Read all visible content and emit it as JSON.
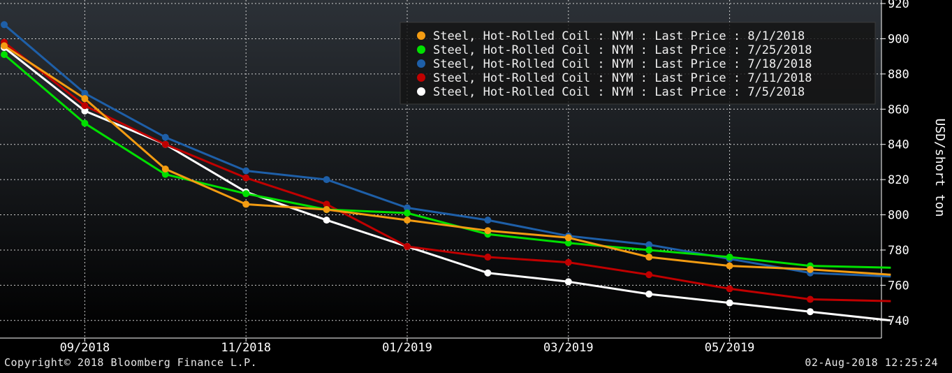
{
  "chart_data": {
    "type": "line",
    "title": "",
    "xlabel": "",
    "ylabel": "USD/short ton",
    "ylim": [
      730,
      922
    ],
    "yticks": [
      740,
      760,
      780,
      800,
      820,
      840,
      860,
      880,
      900,
      920
    ],
    "x_tick_labels": [
      "09/2018",
      "11/2018",
      "01/2019",
      "03/2019",
      "05/2019"
    ],
    "x_tick_index": [
      1,
      3,
      5,
      7,
      9
    ],
    "x": [
      "Aug 2018",
      "Sep 2018",
      "Oct 2018",
      "Nov 2018",
      "Dec 2018",
      "Jan 2019",
      "Feb 2019",
      "Mar 2019",
      "Apr 2019",
      "May 2019",
      "Jun 2019",
      "Jul 2019"
    ],
    "legend_position": "top-right",
    "series": [
      {
        "name": "Steel, Hot-Rolled Coil : NYM : Last Price : 8/1/2018",
        "color": "#f39c12",
        "values": [
          896,
          866,
          826,
          806,
          803,
          797,
          791,
          787,
          776,
          771,
          769,
          766
        ]
      },
      {
        "name": "Steel, Hot-Rolled Coil : NYM : Last Price : 7/25/2018",
        "color": "#00e000",
        "values": [
          891,
          852,
          823,
          812,
          803,
          801,
          789,
          784,
          780,
          776,
          771,
          770
        ]
      },
      {
        "name": "Steel, Hot-Rolled Coil : NYM : Last Price : 7/18/2018",
        "color": "#1e5fa8",
        "values": [
          908,
          869,
          844,
          825,
          820,
          804,
          797,
          788,
          783,
          775,
          767,
          765
        ]
      },
      {
        "name": "Steel, Hot-Rolled Coil : NYM : Last Price : 7/11/2018",
        "color": "#c00000",
        "values": [
          898,
          862,
          840,
          821,
          806,
          782,
          776,
          773,
          766,
          758,
          752,
          751
        ]
      },
      {
        "name": "Steel, Hot-Rolled Coil : NYM : Last Price : 7/5/2018",
        "color": "#ffffff",
        "values": [
          895,
          859,
          840,
          813,
          797,
          782,
          767,
          762,
          755,
          750,
          745,
          740
        ]
      }
    ]
  },
  "footer": {
    "copyright": "Copyright© 2018 Bloomberg Finance L.P.",
    "timestamp": "02-Aug-2018 12:25:24"
  }
}
